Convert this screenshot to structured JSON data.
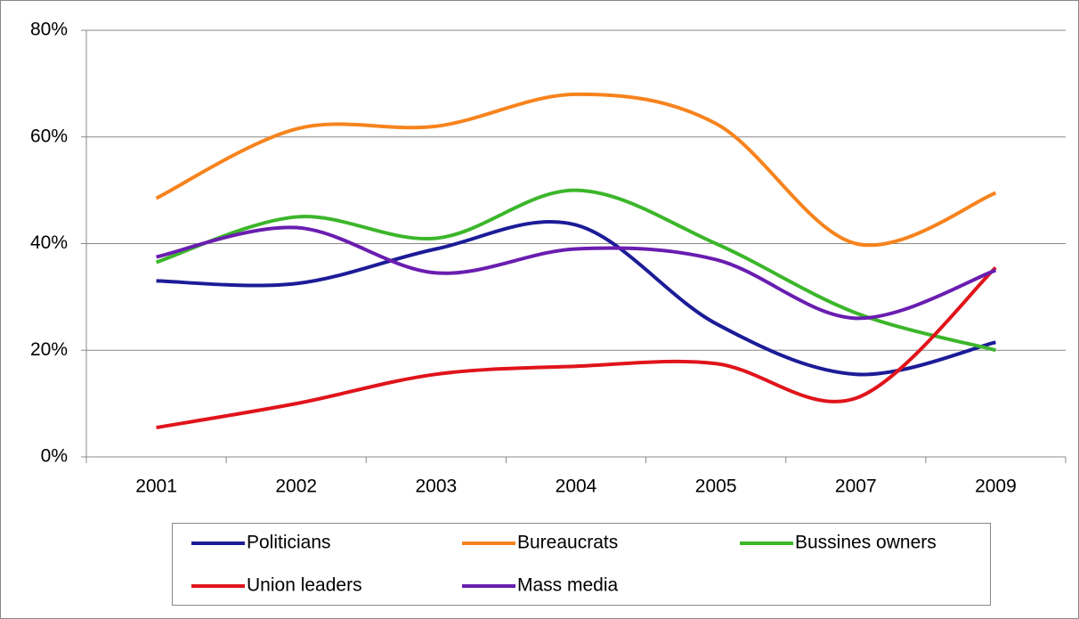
{
  "chart_data": {
    "type": "line",
    "categories": [
      "2001",
      "2002",
      "2003",
      "2004",
      "2005",
      "2007",
      "2009"
    ],
    "series": [
      {
        "name": "Politicians",
        "color": "#1c1c98",
        "values": [
          33,
          32.5,
          39,
          43.5,
          25,
          15.5,
          21.5
        ]
      },
      {
        "name": "Bureaucrats",
        "color": "#f7831d",
        "values": [
          48.5,
          61.5,
          62,
          68,
          62.5,
          40,
          49.5
        ]
      },
      {
        "name": "Bussines owners",
        "color": "#3cb62b",
        "values": [
          36.5,
          45,
          41,
          50,
          40,
          27,
          20
        ]
      },
      {
        "name": "Union leaders",
        "color": "#e0141b",
        "values": [
          5.5,
          10,
          15.5,
          17,
          17.5,
          11,
          35.5
        ]
      },
      {
        "name": "Mass media",
        "color": "#6a1db0",
        "values": [
          37.5,
          43,
          34.5,
          39,
          37,
          26,
          35
        ]
      }
    ],
    "ylim": [
      0,
      80
    ],
    "yticks": [
      {
        "value": 0,
        "label": "0%"
      },
      {
        "value": 20,
        "label": "20%"
      },
      {
        "value": 40,
        "label": "40%"
      },
      {
        "value": 60,
        "label": "60%"
      },
      {
        "value": 80,
        "label": "80%"
      }
    ],
    "grid": true,
    "smooth": true,
    "legend": "bottom"
  }
}
